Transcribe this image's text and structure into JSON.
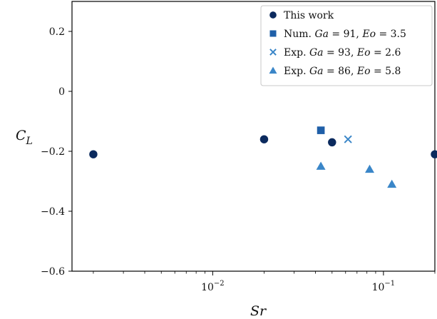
{
  "chart_data": {
    "type": "scatter",
    "x_scale": "log",
    "xlim": [
      0.0015,
      0.2
    ],
    "ylim": [
      -0.6,
      0.3
    ],
    "xlabel": "Sr",
    "ylabel": {
      "base": "C",
      "sub": "L"
    },
    "x_ticks": [
      {
        "value": 0.01,
        "base": "10",
        "exp": "−2"
      },
      {
        "value": 0.1,
        "base": "10",
        "exp": "−1"
      }
    ],
    "y_ticks": [
      {
        "value": 0.2,
        "label": "0.2"
      },
      {
        "value": 0,
        "label": "0"
      },
      {
        "value": -0.2,
        "label": "−0.2"
      },
      {
        "value": -0.4,
        "label": "−0.4"
      },
      {
        "value": -0.6,
        "label": "−0.6"
      }
    ],
    "legend_position": "top-right",
    "series": [
      {
        "key": "this-work",
        "marker": "circle",
        "color": "#0b2a5e",
        "legend": {
          "parts": [
            {
              "text": "This work",
              "italic": false
            }
          ]
        },
        "points": [
          [
            0.002,
            -0.21
          ],
          [
            0.02,
            -0.16
          ],
          [
            0.05,
            -0.17
          ],
          [
            0.2,
            -0.21
          ]
        ]
      },
      {
        "key": "num-ga91",
        "marker": "square",
        "color": "#1f5fa8",
        "legend": {
          "parts": [
            {
              "text": "Num. ",
              "italic": false
            },
            {
              "text": "Ga",
              "italic": true
            },
            {
              "text": " = 91, ",
              "italic": false
            },
            {
              "text": "Eo",
              "italic": true
            },
            {
              "text": " = 3.5",
              "italic": false
            }
          ]
        },
        "points": [
          [
            0.043,
            -0.13
          ]
        ]
      },
      {
        "key": "exp-ga93",
        "marker": "x",
        "color": "#3a86c8",
        "legend": {
          "parts": [
            {
              "text": "Exp. ",
              "italic": false
            },
            {
              "text": "Ga",
              "italic": true
            },
            {
              "text": " = 93, ",
              "italic": false
            },
            {
              "text": "Eo",
              "italic": true
            },
            {
              "text": " = 2.6",
              "italic": false
            }
          ]
        },
        "points": [
          [
            0.062,
            -0.16
          ]
        ]
      },
      {
        "key": "exp-ga86",
        "marker": "triangle",
        "color": "#3a86c8",
        "legend": {
          "parts": [
            {
              "text": "Exp. ",
              "italic": false
            },
            {
              "text": "Ga",
              "italic": true
            },
            {
              "text": " = 86, ",
              "italic": false
            },
            {
              "text": "Eo",
              "italic": true
            },
            {
              "text": " = 5.8",
              "italic": false
            }
          ]
        },
        "points": [
          [
            0.043,
            -0.25
          ],
          [
            0.083,
            -0.26
          ],
          [
            0.112,
            -0.31
          ]
        ]
      }
    ]
  }
}
